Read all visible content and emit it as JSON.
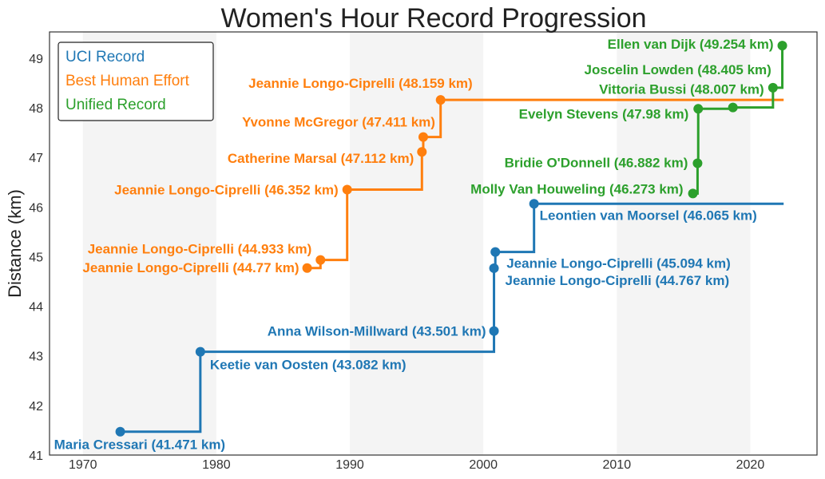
{
  "chart_data": {
    "type": "line",
    "title": "Women's Hour Record Progression",
    "xlabel": "",
    "ylabel": "Distance (km)",
    "xlim": [
      1967.5,
      2025
    ],
    "ylim": [
      41,
      49.53
    ],
    "xticks": [
      1970,
      1980,
      1990,
      2000,
      2010,
      2020
    ],
    "yticks": [
      41,
      42,
      43,
      44,
      45,
      46,
      47,
      48,
      49
    ],
    "shaded_decades": [
      [
        1970,
        1980
      ],
      [
        1990,
        2000
      ],
      [
        2010,
        2020
      ]
    ],
    "grid": false,
    "legend_position": "top-left",
    "step_style": "post",
    "series": [
      {
        "name": "UCI Record",
        "color": "#1f77b4",
        "extend_to": 2022.5,
        "points": [
          {
            "x": 1972.8,
            "y": 41.471,
            "label": "Maria Cressari (41.471 km)"
          },
          {
            "x": 1978.8,
            "y": 43.082,
            "label": "Keetie van Oosten (43.082 km)"
          },
          {
            "x": 2000.8,
            "y": 43.501,
            "label": "Anna Wilson-Millward (43.501 km)"
          },
          {
            "x": 2000.8,
            "y": 44.767,
            "label": "Jeannie Longo-Ciprelli (44.767 km)"
          },
          {
            "x": 2000.9,
            "y": 45.094,
            "label": "Jeannie Longo-Ciprelli (45.094 km)"
          },
          {
            "x": 2003.8,
            "y": 46.065,
            "label": "Leontien van Moorsel (46.065 km)"
          }
        ]
      },
      {
        "name": "Best Human Effort",
        "color": "#ff7f0e",
        "extend_to": 2022.5,
        "points": [
          {
            "x": 1986.8,
            "y": 44.77,
            "label": "Jeannie Longo-Ciprelli (44.77 km)"
          },
          {
            "x": 1987.8,
            "y": 44.933,
            "label": "Jeannie Longo-Ciprelli (44.933 km)"
          },
          {
            "x": 1989.8,
            "y": 46.352,
            "label": "Jeannie Longo-Ciprelli (46.352 km)"
          },
          {
            "x": 1995.4,
            "y": 47.112,
            "label": "Catherine Marsal (47.112 km)"
          },
          {
            "x": 1995.5,
            "y": 47.411,
            "label": "Yvonne McGregor (47.411 km)"
          },
          {
            "x": 1996.8,
            "y": 48.159,
            "label": "Jeannie Longo-Ciprelli (48.159 km)"
          }
        ]
      },
      {
        "name": "Unified Record",
        "color": "#2ca02c",
        "points": [
          {
            "x": 2015.7,
            "y": 46.273,
            "label": "Molly Van Houweling (46.273 km)"
          },
          {
            "x": 2016.05,
            "y": 46.882,
            "label": "Bridie O'Donnell (46.882 km)"
          },
          {
            "x": 2016.1,
            "y": 47.98,
            "label": "Evelyn Stevens (47.98 km)"
          },
          {
            "x": 2018.7,
            "y": 48.007,
            "label": "Vittoria Bussi (48.007 km)"
          },
          {
            "x": 2021.7,
            "y": 48.405,
            "label": "Joscelin Lowden (48.405 km)"
          },
          {
            "x": 2022.4,
            "y": 49.254,
            "label": "Ellen van Dijk (49.254 km)"
          }
        ]
      }
    ]
  }
}
